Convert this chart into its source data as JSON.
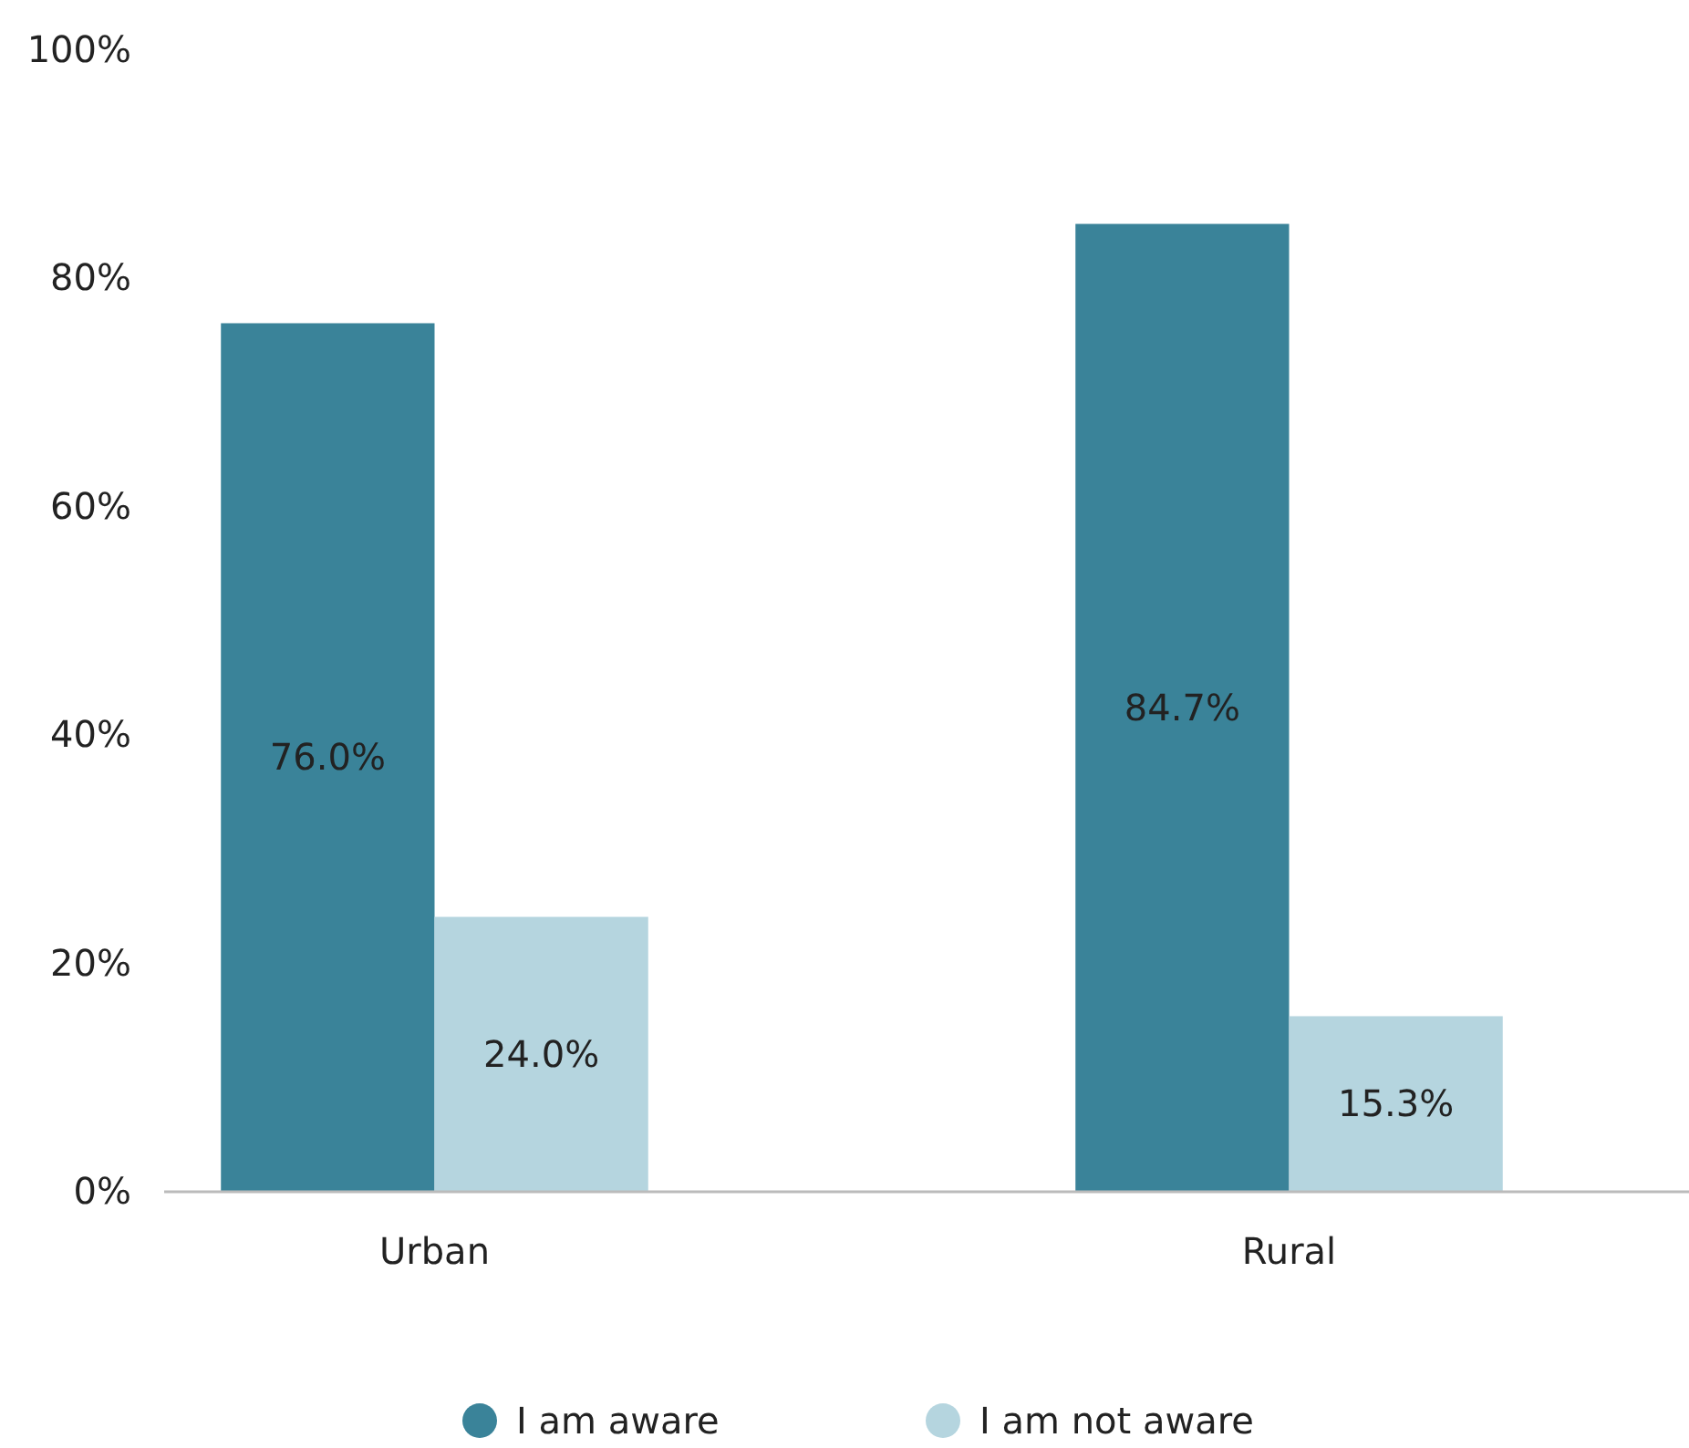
{
  "chart_data": {
    "type": "bar",
    "categories": [
      "Urban",
      "Rural"
    ],
    "series": [
      {
        "name": "I am aware",
        "color": "#3a8399",
        "values": [
          76.0,
          84.7
        ],
        "value_labels": [
          "76.0%",
          "84.7%"
        ]
      },
      {
        "name": "I am not aware",
        "color": "#b5d5df",
        "values": [
          24.0,
          15.3
        ],
        "value_labels": [
          "24.0%",
          "15.3%"
        ]
      }
    ],
    "ylim": [
      0,
      100
    ],
    "yticks": [
      {
        "value": 0,
        "label": "0%"
      },
      {
        "value": 20,
        "label": "20%"
      },
      {
        "value": 40,
        "label": "40%"
      },
      {
        "value": 60,
        "label": "60%"
      },
      {
        "value": 80,
        "label": "80%"
      },
      {
        "value": 100,
        "label": "100%"
      }
    ],
    "grid": false,
    "legend": "bottom"
  }
}
